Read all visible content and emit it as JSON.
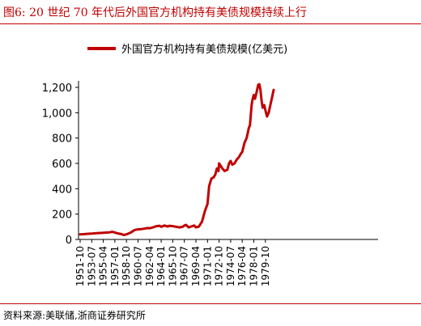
{
  "header": {
    "title": "图6:   20 世纪 70 年代后外国官方机构持有美债规模持续上行"
  },
  "footer": {
    "source": "资料来源:美联储,浙商证券研究所"
  },
  "colors": {
    "accent": "#c00000",
    "series": "#c00000",
    "axis": "#000000"
  },
  "chart_data": {
    "type": "line",
    "legend_position": "top",
    "grid": false,
    "xlabel": "",
    "ylabel": "",
    "ylim": [
      0,
      1300
    ],
    "yticks": [
      0,
      200,
      400,
      600,
      800,
      1000,
      1200
    ],
    "ytick_labels": [
      "0",
      "200",
      "400",
      "600",
      "800",
      "1,000",
      "1,200"
    ],
    "xticks": [
      "1951-10",
      "1953-07",
      "1955-04",
      "1957-01",
      "1958-10",
      "1960-07",
      "1962-04",
      "1964-01",
      "1965-10",
      "1967-07",
      "1969-04",
      "1971-01",
      "1972-10",
      "1974-07",
      "1976-04",
      "1978-01",
      "1979-10"
    ],
    "series": [
      {
        "name": "外国官方机构持有美债规模(亿美元)",
        "points": [
          [
            "1951-10",
            40
          ],
          [
            "1952-06",
            42
          ],
          [
            "1953-03",
            45
          ],
          [
            "1953-07",
            46
          ],
          [
            "1954-04",
            50
          ],
          [
            "1955-01",
            52
          ],
          [
            "1955-04",
            53
          ],
          [
            "1956-03",
            56
          ],
          [
            "1956-08",
            60
          ],
          [
            "1957-01",
            55
          ],
          [
            "1957-06",
            48
          ],
          [
            "1958-01",
            42
          ],
          [
            "1958-05",
            35
          ],
          [
            "1958-10",
            40
          ],
          [
            "1959-06",
            55
          ],
          [
            "1960-01",
            75
          ],
          [
            "1960-07",
            80
          ],
          [
            "1961-01",
            82
          ],
          [
            "1961-06",
            85
          ],
          [
            "1962-01",
            90
          ],
          [
            "1962-04",
            88
          ],
          [
            "1962-10",
            95
          ],
          [
            "1963-04",
            105
          ],
          [
            "1963-10",
            108
          ],
          [
            "1964-01",
            100
          ],
          [
            "1964-07",
            110
          ],
          [
            "1965-01",
            102
          ],
          [
            "1965-04",
            108
          ],
          [
            "1965-10",
            105
          ],
          [
            "1966-04",
            100
          ],
          [
            "1966-10",
            95
          ],
          [
            "1967-04",
            100
          ],
          [
            "1967-07",
            110
          ],
          [
            "1967-10",
            115
          ],
          [
            "1968-03",
            95
          ],
          [
            "1968-09",
            105
          ],
          [
            "1969-01",
            110
          ],
          [
            "1969-04",
            95
          ],
          [
            "1969-09",
            100
          ],
          [
            "1970-03",
            140
          ],
          [
            "1970-08",
            220
          ],
          [
            "1971-01",
            280
          ],
          [
            "1971-04",
            420
          ],
          [
            "1971-08",
            480
          ],
          [
            "1971-12",
            490
          ],
          [
            "1972-03",
            510
          ],
          [
            "1972-06",
            560
          ],
          [
            "1972-09",
            540
          ],
          [
            "1972-10",
            600
          ],
          [
            "1973-01",
            580
          ],
          [
            "1973-04",
            560
          ],
          [
            "1973-08",
            540
          ],
          [
            "1974-01",
            550
          ],
          [
            "1974-04",
            600
          ],
          [
            "1974-07",
            620
          ],
          [
            "1974-10",
            590
          ],
          [
            "1975-02",
            600
          ],
          [
            "1975-06",
            630
          ],
          [
            "1975-10",
            650
          ],
          [
            "1976-02",
            680
          ],
          [
            "1976-04",
            690
          ],
          [
            "1976-08",
            760
          ],
          [
            "1976-12",
            800
          ],
          [
            "1977-04",
            880
          ],
          [
            "1977-06",
            900
          ],
          [
            "1977-09",
            1060
          ],
          [
            "1977-11",
            1110
          ],
          [
            "1978-01",
            1140
          ],
          [
            "1978-03",
            1110
          ],
          [
            "1978-06",
            1160
          ],
          [
            "1978-09",
            1220
          ],
          [
            "1978-11",
            1225
          ],
          [
            "1979-01",
            1180
          ],
          [
            "1979-03",
            1100
          ],
          [
            "1979-05",
            1040
          ],
          [
            "1979-08",
            1060
          ],
          [
            "1979-10",
            1020
          ],
          [
            "1980-01",
            970
          ],
          [
            "1980-04",
            1000
          ],
          [
            "1980-07",
            1060
          ],
          [
            "1980-10",
            1120
          ],
          [
            "1981-01",
            1180
          ]
        ]
      }
    ]
  }
}
